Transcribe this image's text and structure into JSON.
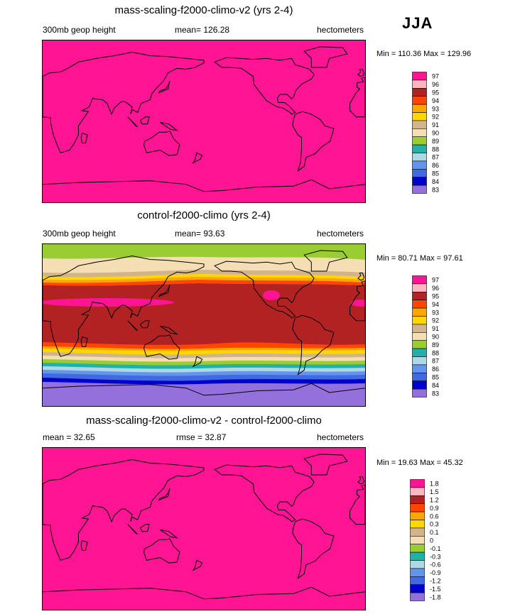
{
  "season": "JJA",
  "colors": {
    "magenta": "#ff1493",
    "pink": "#ffb6c1",
    "brown_red": "#b22222",
    "orange_red": "#ff4500",
    "orange": "#ffa500",
    "gold": "#ffd700",
    "tan": "#d2b48c",
    "wheat": "#f5deb3",
    "green": "#9acd32",
    "teal": "#20b2aa",
    "light_blue": "#add8e6",
    "cornflower": "#6495ed",
    "royal_blue": "#4169e1",
    "blue": "#0000cd",
    "purple": "#9370db"
  },
  "chart_data": [
    {
      "type": "heatmap",
      "title": "mass-scaling-f2000-climo-v2 (yrs 2-4)",
      "left_label": "300mb geop height",
      "center_label": "mean= 126.28",
      "right_label": "hectometers",
      "minmax": "Min = 110.36 Max = 129.96",
      "min": 110.36,
      "max": 129.96,
      "mean": 126.28,
      "levels": [
        "97",
        "96",
        "95",
        "94",
        "93",
        "92",
        "91",
        "90",
        "89",
        "88",
        "87",
        "86",
        "85",
        "84",
        "83"
      ],
      "fill": "uniform above top contour (97)"
    },
    {
      "type": "heatmap",
      "title": "control-f2000-climo (yrs 2-4)",
      "left_label": "300mb geop height",
      "center_label": "mean=  93.63",
      "right_label": "hectometers",
      "minmax": "Min =  80.71 Max =  97.61",
      "min": 80.71,
      "max": 97.61,
      "mean": 93.63,
      "levels": [
        "97",
        "96",
        "95",
        "94",
        "93",
        "92",
        "91",
        "90",
        "89",
        "88",
        "87",
        "86",
        "85",
        "84",
        "83"
      ],
      "fill": "zonal bands, lowest over poles, highest in tropics"
    },
    {
      "type": "heatmap",
      "title": "mass-scaling-f2000-climo-v2 - control-f2000-climo",
      "left_label": "mean =  32.65",
      "center_label": "rmse =  32.87",
      "right_label": "hectometers",
      "minmax": "Min =  19.63 Max =  45.32",
      "min": 19.63,
      "max": 45.32,
      "mean": 32.65,
      "rmse": 32.87,
      "levels": [
        "1.8",
        "1.5",
        "1.2",
        "0.9",
        "0.6",
        "0.3",
        "0.1",
        "0",
        "-0.1",
        "-0.3",
        "-0.6",
        "-0.9",
        "-1.2",
        "-1.5",
        "-1.8"
      ],
      "fill": "uniform above top contour (1.8)"
    }
  ]
}
